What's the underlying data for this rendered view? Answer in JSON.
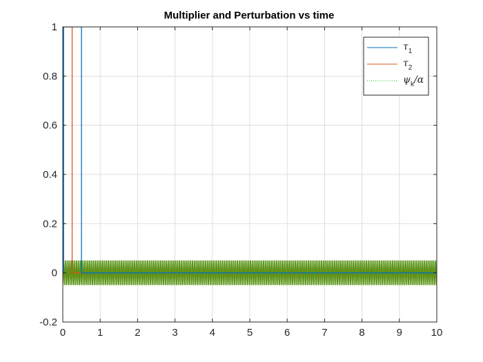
{
  "chart_data": {
    "type": "line",
    "title": "Multiplier and Perturbation vs time",
    "xlabel": "",
    "ylabel": "",
    "xlim": [
      0,
      10
    ],
    "ylim": [
      -0.2,
      1
    ],
    "xticks": [
      "0",
      "1",
      "2",
      "3",
      "4",
      "5",
      "6",
      "7",
      "8",
      "9",
      "10"
    ],
    "yticks": [
      "-0.2",
      "0",
      "0.2",
      "0.4",
      "0.6",
      "0.8",
      "1"
    ],
    "grid": true,
    "legend_position": "top-right",
    "series": [
      {
        "name": "τ",
        "subscript": "1",
        "color": "#0072BD",
        "style": "solid",
        "x": [
          0,
          0.02,
          0.02,
          0.5,
          0.5,
          10
        ],
        "y": [
          0,
          0,
          1,
          1,
          0,
          0
        ]
      },
      {
        "name": "τ",
        "subscript": "2",
        "color": "#D95319",
        "style": "solid",
        "x": [
          0,
          0.02,
          0.02,
          0.25,
          0.25,
          10
        ],
        "y": [
          0,
          0,
          1,
          1,
          0,
          0
        ]
      },
      {
        "name": "ψ",
        "subscript": "k",
        "suffix": "/α",
        "color": "#00CC00",
        "style": "dotted",
        "amplitude": 0.05,
        "frequency": 20,
        "x_range": [
          0,
          10
        ]
      }
    ],
    "overlap_color": "#7E7E21"
  }
}
